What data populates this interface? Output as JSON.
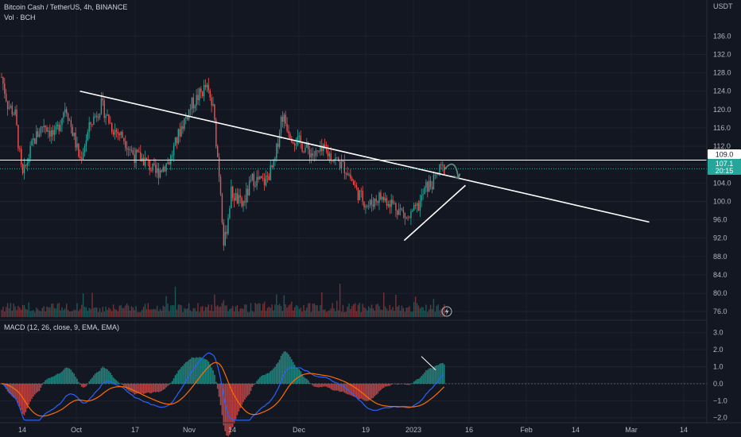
{
  "header": {
    "symbol_line": "Bitcoin Cash / TetherUS, 4h, BINANCE",
    "volume_label": "Vol · BCH",
    "macd_label": "MACD (12, 26, close, 9, EMA, EMA)"
  },
  "price_axis": {
    "currency": "USDT",
    "ticks": [
      "136.0",
      "132.0",
      "128.0",
      "124.0",
      "120.0",
      "116.0",
      "112.0",
      "108.0",
      "104.0",
      "100.0",
      "96.0",
      "92.0",
      "88.0",
      "84.0",
      "80.0",
      "76.0"
    ]
  },
  "macd_axis": {
    "ticks": [
      "3.0",
      "2.0",
      "1.0",
      "0.0",
      "−1.0",
      "−2.0"
    ]
  },
  "time_axis": {
    "ticks": [
      "14",
      "Oct",
      "17",
      "Nov",
      "14",
      "Dec",
      "19",
      "2023",
      "16",
      "Feb",
      "14",
      "Mar",
      "14"
    ]
  },
  "price_labels": {
    "horizontal_level": "109.0",
    "last_price": "107.1",
    "countdown": "20:15"
  },
  "colors": {
    "background": "#131722",
    "up": "#26a69a",
    "down": "#ef5350",
    "macd_line": "#2962ff",
    "signal_line": "#ff6d00",
    "grid": "#1e222d",
    "trendline": "#ffffff"
  },
  "icons": {
    "alert": "lightning-icon",
    "arrow": "curved-arrow-icon"
  },
  "chart_data": {
    "type": "candlestick",
    "instrument": "Bitcoin Cash / TetherUS",
    "interval": "4h",
    "exchange": "BINANCE",
    "price_range": [
      75,
      139
    ],
    "macd_range": [
      -2.2,
      3.5
    ],
    "horizontal_line": 109.0,
    "last_close": 107.1,
    "close_path": [
      {
        "t": "Sep 5",
        "p": 132
      },
      {
        "t": "Sep 8",
        "p": 128
      },
      {
        "t": "Sep 10",
        "p": 121
      },
      {
        "t": "Sep 12",
        "p": 119
      },
      {
        "t": "Sep 14",
        "p": 105
      },
      {
        "t": "Sep 17",
        "p": 113
      },
      {
        "t": "Sep 20",
        "p": 117
      },
      {
        "t": "Sep 23",
        "p": 114
      },
      {
        "t": "Sep 26",
        "p": 121
      },
      {
        "t": "Sep 30",
        "p": 109
      },
      {
        "t": "Oct 3",
        "p": 117
      },
      {
        "t": "Oct 6",
        "p": 121
      },
      {
        "t": "Oct 9",
        "p": 116
      },
      {
        "t": "Oct 12",
        "p": 114
      },
      {
        "t": "Oct 15",
        "p": 110
      },
      {
        "t": "Oct 18",
        "p": 109
      },
      {
        "t": "Oct 21",
        "p": 106
      },
      {
        "t": "Oct 25",
        "p": 109
      },
      {
        "t": "Oct 28",
        "p": 116
      },
      {
        "t": "Oct 31",
        "p": 121
      },
      {
        "t": "Nov 4",
        "p": 125
      },
      {
        "t": "Nov 6",
        "p": 120
      },
      {
        "t": "Nov 8",
        "p": 103
      },
      {
        "t": "Nov 9",
        "p": 90
      },
      {
        "t": "Nov 11",
        "p": 102
      },
      {
        "t": "Nov 14",
        "p": 99
      },
      {
        "t": "Nov 17",
        "p": 105
      },
      {
        "t": "Nov 20",
        "p": 104
      },
      {
        "t": "Nov 23",
        "p": 108
      },
      {
        "t": "Nov 25",
        "p": 119
      },
      {
        "t": "Nov 28",
        "p": 114
      },
      {
        "t": "Dec 1",
        "p": 112
      },
      {
        "t": "Dec 4",
        "p": 110
      },
      {
        "t": "Dec 7",
        "p": 111
      },
      {
        "t": "Dec 10",
        "p": 109
      },
      {
        "t": "Dec 13",
        "p": 107
      },
      {
        "t": "Dec 16",
        "p": 102
      },
      {
        "t": "Dec 19",
        "p": 99
      },
      {
        "t": "Dec 22",
        "p": 101
      },
      {
        "t": "Dec 25",
        "p": 100
      },
      {
        "t": "Dec 28",
        "p": 98
      },
      {
        "t": "Dec 30",
        "p": 96
      },
      {
        "t": "Jan 2",
        "p": 99
      },
      {
        "t": "Jan 4",
        "p": 103
      },
      {
        "t": "Jan 6",
        "p": 104
      },
      {
        "t": "Jan 8",
        "p": 107
      },
      {
        "t": "Jan 10",
        "p": 107.1
      }
    ],
    "drawings": {
      "descending_trendline": {
        "from": {
          "t": "Sep 30",
          "p": 124
        },
        "to": {
          "t": "Mar 7",
          "p": 95.5
        }
      },
      "rising_trendline": {
        "from": {
          "t": "Dec 29",
          "p": 91.5
        },
        "to": {
          "t": "Jan 15",
          "p": 103.5
        }
      },
      "arrow": {
        "from": {
          "t": "Jan 10",
          "p": 107.6
        },
        "to": {
          "t": "Jan 13",
          "p": 105
        }
      }
    }
  }
}
